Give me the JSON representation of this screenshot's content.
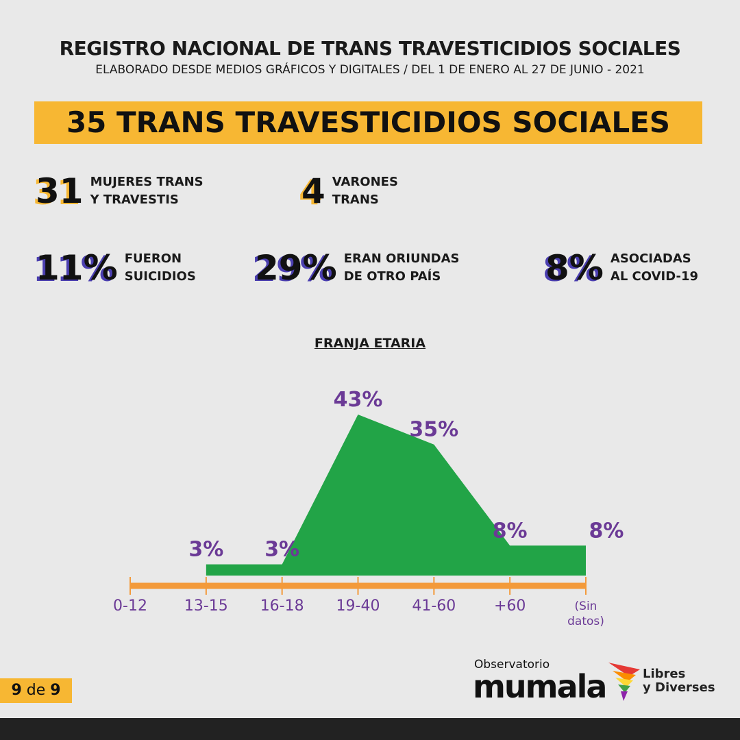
{
  "header": {
    "title": "REGISTRO NACIONAL DE TRANS TRAVESTICIDIOS SOCIALES",
    "subtitle": "ELABORADO DESDE MEDIOS GRÁFICOS Y DIGITALES / DEL 1 DE ENERO AL 27 DE JUNIO - 2021",
    "banner": "35 TRANS TRAVESTICIDIOS SOCIALES"
  },
  "stats": [
    {
      "number": "31",
      "lines": [
        "MUJERES TRANS",
        "Y TRAVESTIS"
      ]
    },
    {
      "number": "4",
      "lines": [
        "VARONES",
        "TRANS"
      ]
    },
    {
      "number": "11%",
      "lines": [
        "FUERON",
        "SUICIDIOS"
      ]
    },
    {
      "number": "29%",
      "lines": [
        "ERAN ORIUNDAS",
        "DE OTRO PAÍS"
      ]
    },
    {
      "number": "8%",
      "lines": [
        "ASOCIADAS",
        "AL COVID-19"
      ]
    }
  ],
  "chart_data": {
    "type": "area",
    "title": "FRANJA ETARIA",
    "categories": [
      "0-12",
      "13-15",
      "16-18",
      "19-40",
      "41-60",
      "+60",
      "(Sin datos)"
    ],
    "values": [
      null,
      3,
      3,
      43,
      35,
      8,
      8
    ],
    "value_labels": [
      null,
      "3%",
      "3%",
      "43%",
      "35%",
      "8%",
      "8%"
    ],
    "color": "#22a447",
    "label_color": "#6b3a96",
    "axis_color": "#f39a3a"
  },
  "footer": {
    "page": [
      "9",
      "de",
      "9"
    ],
    "logo1": [
      "Observatorio",
      "mumala"
    ],
    "logo2": [
      "Libres",
      "y Diverses"
    ]
  }
}
